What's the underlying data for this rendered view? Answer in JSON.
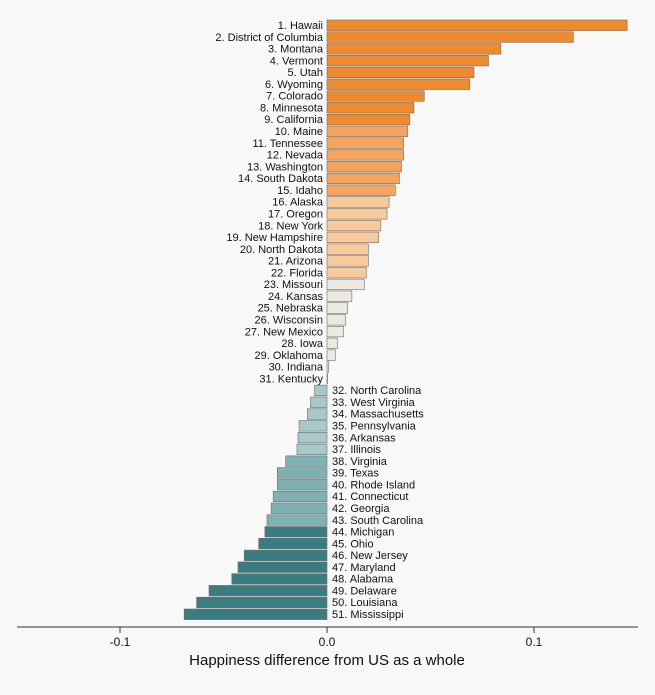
{
  "chart_data": {
    "type": "bar",
    "orientation": "horizontal",
    "xlabel": "Happiness difference from US as a whole",
    "ylabel": "",
    "xlim": [
      -0.147,
      0.147
    ],
    "xticks": [
      -0.1,
      0.0,
      0.1
    ],
    "xtick_labels": [
      "-0.1",
      "0.0",
      "0.1"
    ],
    "grid": false,
    "legend": "none",
    "color_positive_strong": "#f08a2e",
    "color_positive_mid": "#f5a460",
    "color_positive_light": "#f8c99a",
    "color_neutral": "#ece8e2",
    "color_negative_light": "#a8c8ca",
    "color_negative_mid": "#7fb0b2",
    "color_negative_strong": "#3b7c80",
    "categories": [
      "1. Hawaii",
      "2. District of Columbia",
      "3. Montana",
      "4. Vermont",
      "5. Utah",
      "6. Wyoming",
      "7. Colorado",
      "8. Minnesota",
      "9. California",
      "10. Maine",
      "11. Tennessee",
      "12. Nevada",
      "13. Washington",
      "14. South Dakota",
      "15. Idaho",
      "16. Alaska",
      "17. Oregon",
      "18. New York",
      "19. New Hampshire",
      "20. North Dakota",
      "21. Arizona",
      "22. Florida",
      "23. Missouri",
      "24. Kansas",
      "25. Nebraska",
      "26. Wisconsin",
      "27. New Mexico",
      "28. Iowa",
      "29. Oklahoma",
      "30. Indiana",
      "31. Kentucky",
      "32. North Carolina",
      "33. West Virginia",
      "34. Massachusetts",
      "35. Pennsylvania",
      "36. Arkansas",
      "37. Illinois",
      "38. Virginia",
      "39. Texas",
      "40. Rhode Island",
      "41. Connecticut",
      "42. Georgia",
      "43. South Carolina",
      "44. Michigan",
      "45. Ohio",
      "46. New Jersey",
      "47. Maryland",
      "48. Alabama",
      "49. Delaware",
      "50. Louisiana",
      "51. Mississippi"
    ],
    "values": [
      0.145,
      0.119,
      0.084,
      0.078,
      0.071,
      0.069,
      0.047,
      0.042,
      0.04,
      0.039,
      0.037,
      0.037,
      0.036,
      0.035,
      0.033,
      0.03,
      0.029,
      0.026,
      0.025,
      0.02,
      0.02,
      0.019,
      0.018,
      0.012,
      0.01,
      0.009,
      0.008,
      0.005,
      0.004,
      0.0008,
      0.0003,
      -0.006,
      -0.008,
      -0.0095,
      -0.0135,
      -0.014,
      -0.0145,
      -0.02,
      -0.024,
      -0.024,
      -0.026,
      -0.027,
      -0.029,
      -0.03,
      -0.033,
      -0.04,
      -0.043,
      -0.046,
      -0.057,
      -0.063,
      -0.069
    ]
  }
}
